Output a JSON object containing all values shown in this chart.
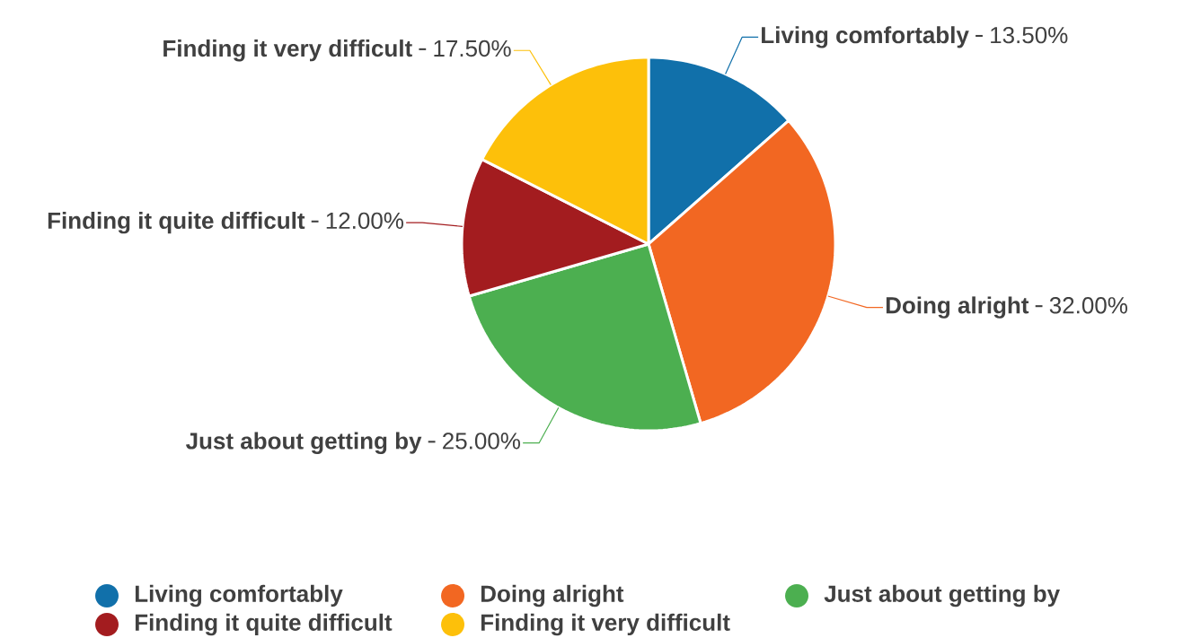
{
  "chart_data": {
    "type": "pie",
    "categories": [
      "Living comfortably",
      "Doing alright",
      "Just about getting by",
      "Finding it quite difficult",
      "Finding it very difficult"
    ],
    "values": [
      13.5,
      32,
      25,
      12,
      17.5
    ],
    "value_labels": [
      "13.50%",
      "32.00%",
      "25.00%",
      "12.00%",
      "17.50%"
    ],
    "colors": [
      "#1170aa",
      "#f26722",
      "#4caf50",
      "#a31c1f",
      "#fdc00a"
    ],
    "legend": "bottom"
  }
}
